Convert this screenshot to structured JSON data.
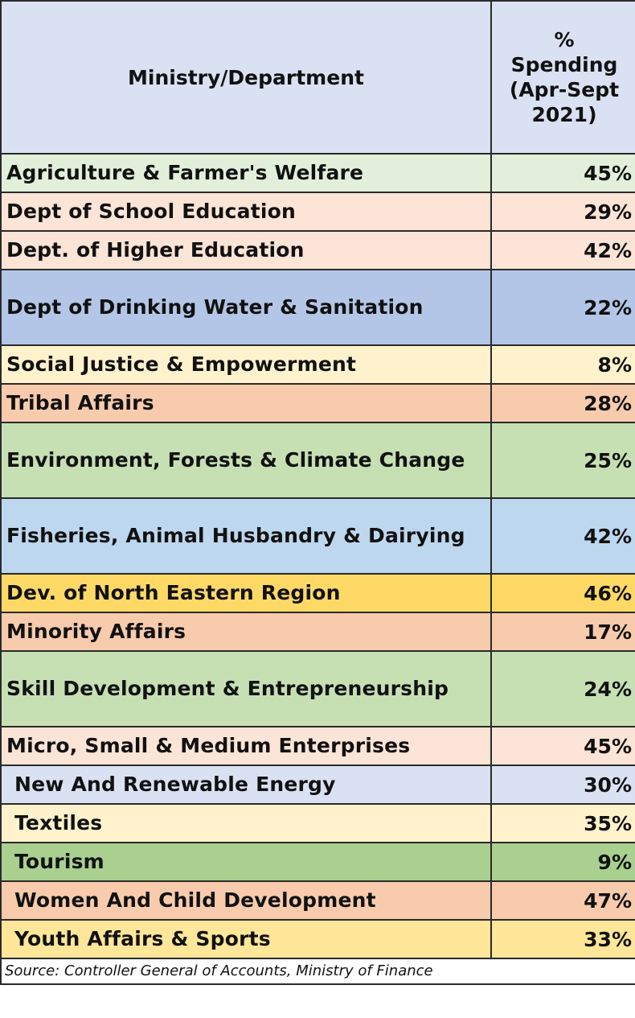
{
  "chart_data": {
    "type": "table",
    "columns": [
      "Ministry/Department",
      "% Spending (Apr-Sept 2021)"
    ],
    "header_pct_lines": [
      "%",
      "Spending",
      "(Apr-Sept",
      "2021)"
    ],
    "rows": [
      {
        "name": "Agriculture & Farmer's Welfare",
        "value": "45%",
        "pct": 45,
        "color": "#e2efda",
        "lines": 1,
        "indent": false
      },
      {
        "name": "Dept of School Education",
        "value": "29%",
        "pct": 29,
        "color": "#fce4d6",
        "lines": 1,
        "indent": false
      },
      {
        "name": "Dept. of Higher Education",
        "value": "42%",
        "pct": 42,
        "color": "#fce4d6",
        "lines": 1,
        "indent": false
      },
      {
        "name": "Dept of Drinking Water & Sanitation",
        "value": "22%",
        "pct": 22,
        "color": "#b4c6e7",
        "lines": 2,
        "indent": false
      },
      {
        "name": "Social Justice & Empowerment",
        "value": "8%",
        "pct": 8,
        "color": "#fff2cc",
        "lines": 1,
        "indent": false
      },
      {
        "name": "Tribal Affairs",
        "value": "28%",
        "pct": 28,
        "color": "#f8cbad",
        "lines": 1,
        "indent": false
      },
      {
        "name": "Environment, Forests & Climate Change",
        "value": "25%",
        "pct": 25,
        "color": "#c6e0b4",
        "lines": 2,
        "indent": false
      },
      {
        "name": "Fisheries, Animal Husbandry & Dairying",
        "value": "42%",
        "pct": 42,
        "color": "#bdd7ee",
        "lines": 2,
        "indent": false
      },
      {
        "name": "Dev. of North Eastern Region",
        "value": "46%",
        "pct": 46,
        "color": "#ffd966",
        "lines": 1,
        "indent": false
      },
      {
        "name": "Minority Affairs",
        "value": "17%",
        "pct": 17,
        "color": "#f8cbad",
        "lines": 1,
        "indent": false
      },
      {
        "name": "Skill Development & Entrepreneurship",
        "value": "24%",
        "pct": 24,
        "color": "#c6e0b4",
        "lines": 2,
        "indent": false
      },
      {
        "name": "Micro, Small & Medium Enterprises",
        "value": "45%",
        "pct": 45,
        "color": "#fce4d6",
        "lines": 1,
        "indent": false
      },
      {
        "name": "New And Renewable Energy",
        "value": "30%",
        "pct": 30,
        "color": "#d9e1f2",
        "lines": 1,
        "indent": true
      },
      {
        "name": "Textiles",
        "value": "35%",
        "pct": 35,
        "color": "#fff2cc",
        "lines": 1,
        "indent": true
      },
      {
        "name": "Tourism",
        "value": "9%",
        "pct": 9,
        "color": "#a9d08e",
        "lines": 1,
        "indent": true
      },
      {
        "name": "Women And Child Development",
        "value": "47%",
        "pct": 47,
        "color": "#f8cbad",
        "lines": 1,
        "indent": true
      },
      {
        "name": "Youth Affairs & Sports",
        "value": "33%",
        "pct": 33,
        "color": "#ffe699",
        "lines": 1,
        "indent": true
      }
    ],
    "source": "Source: Controller General of Accounts, Ministry of Finance"
  }
}
